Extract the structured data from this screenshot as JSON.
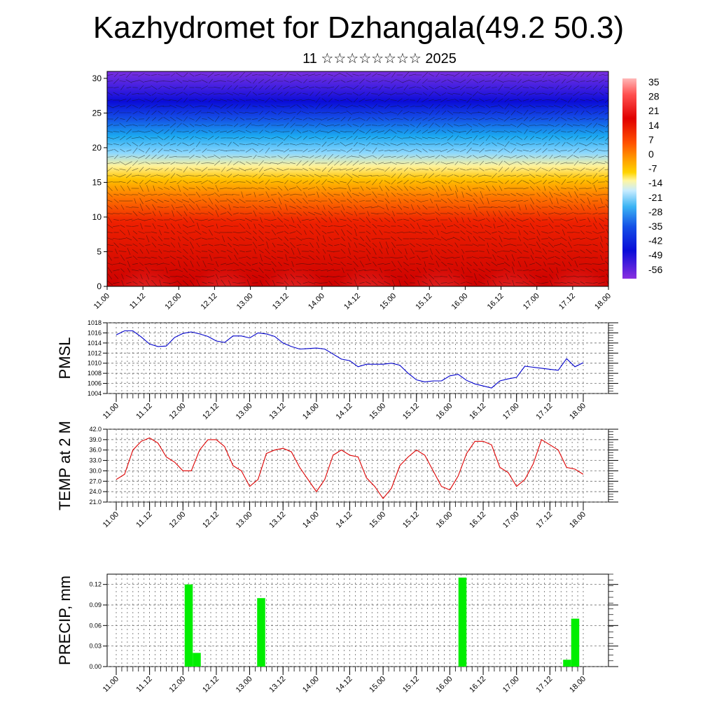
{
  "title": "Kazhydromet for Dzhangala(49.2 50.3)",
  "subtitle": "11 ☆☆☆☆☆☆☆☆ 2025",
  "chart_data": [
    {
      "type": "heatmap",
      "xlabel": "",
      "ylabel": "",
      "x_ticks": [
        "11.00",
        "11.12",
        "12.00",
        "12.12",
        "13.00",
        "13.12",
        "14.00",
        "14.12",
        "15.00",
        "15.12",
        "16.00",
        "16.12",
        "17.00",
        "17.12",
        "18.00"
      ],
      "y_ticks": [
        0,
        5,
        10,
        15,
        20,
        25,
        30
      ],
      "ylim": [
        0,
        31
      ],
      "colorbar_ticks": [
        35,
        28,
        21,
        14,
        7,
        0,
        -7,
        -14,
        -21,
        -28,
        -35,
        -42,
        -49,
        -56
      ],
      "overlay": "wind vectors"
    },
    {
      "type": "line",
      "ylabel": "PMSL",
      "ylim": [
        1004,
        1018
      ],
      "y_ticks": [
        1004,
        1006,
        1008,
        1010,
        1012,
        1014,
        1016,
        1018
      ],
      "x_ticks": [
        "11.00",
        "11.12",
        "12.00",
        "12.12",
        "13.00",
        "13.12",
        "14.00",
        "14.12",
        "15.00",
        "15.12",
        "16.00",
        "16.12",
        "17.00",
        "17.12",
        "18.00"
      ],
      "series": [
        {
          "color": "#0000cc",
          "values": [
            1015.6,
            1016.4,
            1016.4,
            1015.2,
            1013.8,
            1013.3,
            1013.4,
            1015.1,
            1015.9,
            1016.2,
            1015.8,
            1015.3,
            1014.4,
            1014.1,
            1015.4,
            1015.4,
            1015.0,
            1016.0,
            1015.8,
            1015.3,
            1014.0,
            1013.3,
            1012.8,
            1012.9,
            1013.0,
            1012.8,
            1011.8,
            1010.8,
            1010.5,
            1009.3,
            1009.8,
            1009.8,
            1009.8,
            1010.0,
            1009.6,
            1008.0,
            1006.7,
            1006.3,
            1006.5,
            1006.5,
            1007.5,
            1007.8,
            1006.6,
            1005.9,
            1005.5,
            1005.1,
            1006.5,
            1006.9,
            1007.2,
            1009.4,
            1009.2,
            1009.0,
            1008.8,
            1008.6,
            1010.9,
            1009.3,
            1010.1
          ]
        }
      ]
    },
    {
      "type": "line",
      "ylabel": "TEMP at 2 M",
      "ylim": [
        21.0,
        42.0
      ],
      "y_ticks": [
        "21.0",
        "24.0",
        "27.0",
        "30.0",
        "33.0",
        "36.0",
        "39.0",
        "42.0"
      ],
      "x_ticks": [
        "11.00",
        "11.12",
        "12.00",
        "12.12",
        "13.00",
        "13.12",
        "14.00",
        "14.12",
        "15.00",
        "15.12",
        "16.00",
        "16.12",
        "17.00",
        "17.12",
        "18.00"
      ],
      "series": [
        {
          "color": "#dd0000",
          "values": [
            27.5,
            29.0,
            36.0,
            38.5,
            39.5,
            38.0,
            34.0,
            32.5,
            30.0,
            30.0,
            36.0,
            39.0,
            39.0,
            37.0,
            31.5,
            30.0,
            25.5,
            27.5,
            35.0,
            36.0,
            36.5,
            35.5,
            31.0,
            27.5,
            24.0,
            27.5,
            34.5,
            36.0,
            34.5,
            34.0,
            28.0,
            25.5,
            22.0,
            25.0,
            31.5,
            34.0,
            36.0,
            34.5,
            30.0,
            25.5,
            24.5,
            28.5,
            35.0,
            38.5,
            38.5,
            37.5,
            31.0,
            29.5,
            25.5,
            27.5,
            32.0,
            39.0,
            37.5,
            36.0,
            31.0,
            30.5,
            29.0
          ]
        }
      ]
    },
    {
      "type": "bar",
      "ylabel": "PRECIP, mm",
      "ylim": [
        0,
        0.135
      ],
      "y_ticks": [
        "0.00",
        "0.03",
        "0.06",
        "0.09",
        "0.12"
      ],
      "x_ticks": [
        "11.00",
        "11.12",
        "12.00",
        "12.12",
        "13.00",
        "13.12",
        "14.00",
        "14.12",
        "15.00",
        "15.12",
        "16.00",
        "16.12",
        "17.00",
        "17.12",
        "18.00"
      ],
      "bar_color": "#00ee00",
      "series": [
        {
          "values": [
            0,
            0,
            0,
            0,
            0,
            0,
            0,
            0,
            0,
            0.12,
            0.02,
            0,
            0,
            0,
            0,
            0,
            0,
            0,
            0.1,
            0,
            0,
            0,
            0,
            0,
            0,
            0,
            0,
            0,
            0,
            0,
            0,
            0,
            0,
            0,
            0,
            0,
            0,
            0,
            0,
            0,
            0,
            0,
            0,
            0.13,
            0,
            0,
            0,
            0,
            0,
            0,
            0,
            0,
            0,
            0,
            0,
            0,
            0.01,
            0.07,
            0
          ]
        }
      ]
    }
  ]
}
